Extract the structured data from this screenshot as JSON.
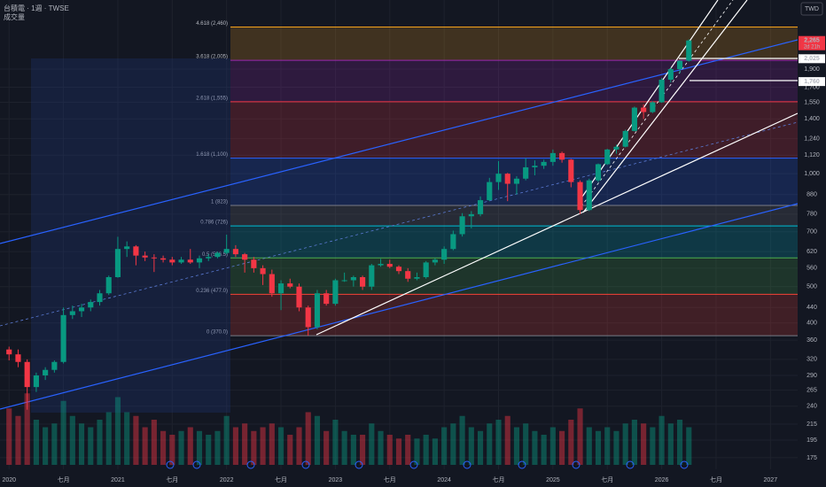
{
  "chart_data": {
    "type": "candlestick",
    "title": "台積電 · 1週 · TWSE",
    "volume_title": "成交量",
    "currency": "TWD",
    "log_scale": true,
    "grid": true,
    "up_color": "#089981",
    "down_color": "#f23645",
    "x": [
      "2020-01",
      "2020-02",
      "2020-03",
      "2020-04",
      "2020-05",
      "2020-06",
      "2020-07",
      "2020-08",
      "2020-09",
      "2020-10",
      "2020-11",
      "2020-12",
      "2021-01",
      "2021-02",
      "2021-03",
      "2021-04",
      "2021-05",
      "2021-06",
      "2021-07",
      "2021-08",
      "2021-09",
      "2021-10",
      "2021-11",
      "2021-12",
      "2022-01",
      "2022-02",
      "2022-03",
      "2022-04",
      "2022-05",
      "2022-06",
      "2022-07",
      "2022-08",
      "2022-09",
      "2022-10",
      "2022-11",
      "2022-12",
      "2023-01",
      "2023-02",
      "2023-03",
      "2023-04",
      "2023-05",
      "2023-06",
      "2023-07",
      "2023-08",
      "2023-09",
      "2023-10",
      "2023-11",
      "2023-12",
      "2024-01",
      "2024-02",
      "2024-03",
      "2024-04",
      "2024-05",
      "2024-06",
      "2024-07",
      "2024-08",
      "2024-09",
      "2024-10",
      "2024-11",
      "2024-12",
      "2025-01",
      "2025-02",
      "2025-03",
      "2025-04",
      "2025-05",
      "2025-06",
      "2025-07",
      "2025-08",
      "2025-09",
      "2025-10",
      "2025-11",
      "2025-12",
      "2026-01",
      "2026-02",
      "2026-03",
      "2026-04"
    ],
    "ohlc": [
      [
        340,
        346,
        318,
        330
      ],
      [
        330,
        340,
        305,
        315
      ],
      [
        315,
        320,
        235,
        270
      ],
      [
        270,
        295,
        262,
        290
      ],
      [
        290,
        305,
        282,
        300
      ],
      [
        300,
        318,
        295,
        315
      ],
      [
        315,
        440,
        312,
        420
      ],
      [
        420,
        445,
        410,
        430
      ],
      [
        430,
        450,
        415,
        440
      ],
      [
        440,
        462,
        430,
        455
      ],
      [
        455,
        490,
        445,
        480
      ],
      [
        480,
        535,
        475,
        530
      ],
      [
        530,
        679,
        528,
        630
      ],
      [
        630,
        660,
        600,
        640
      ],
      [
        640,
        645,
        570,
        605
      ],
      [
        605,
        620,
        585,
        598
      ],
      [
        598,
        610,
        547,
        595
      ],
      [
        595,
        605,
        580,
        590
      ],
      [
        590,
        600,
        570,
        580
      ],
      [
        580,
        600,
        575,
        590
      ],
      [
        590,
        630,
        575,
        580
      ],
      [
        580,
        605,
        560,
        595
      ],
      [
        595,
        610,
        585,
        600
      ],
      [
        600,
        620,
        595,
        615
      ],
      [
        615,
        688,
        610,
        630
      ],
      [
        630,
        645,
        600,
        610
      ],
      [
        610,
        615,
        545,
        590
      ],
      [
        590,
        600,
        545,
        560
      ],
      [
        560,
        570,
        505,
        540
      ],
      [
        540,
        555,
        470,
        480
      ],
      [
        480,
        520,
        433,
        510
      ],
      [
        510,
        525,
        495,
        500
      ],
      [
        500,
        510,
        430,
        440
      ],
      [
        440,
        445,
        370,
        390
      ],
      [
        390,
        490,
        385,
        480
      ],
      [
        480,
        490,
        445,
        450
      ],
      [
        450,
        525,
        445,
        520
      ],
      [
        520,
        545,
        515,
        520
      ],
      [
        520,
        535,
        500,
        530
      ],
      [
        530,
        535,
        490,
        500
      ],
      [
        500,
        575,
        490,
        570
      ],
      [
        570,
        593,
        565,
        575
      ],
      [
        575,
        590,
        560,
        565
      ],
      [
        565,
        570,
        540,
        550
      ],
      [
        550,
        560,
        515,
        525
      ],
      [
        525,
        545,
        520,
        530
      ],
      [
        530,
        585,
        525,
        580
      ],
      [
        580,
        595,
        570,
        590
      ],
      [
        590,
        640,
        575,
        630
      ],
      [
        630,
        705,
        625,
        690
      ],
      [
        690,
        785,
        680,
        770
      ],
      [
        770,
        795,
        715,
        780
      ],
      [
        780,
        870,
        770,
        850
      ],
      [
        850,
        975,
        845,
        950
      ],
      [
        950,
        1080,
        905,
        1000
      ],
      [
        1000,
        1005,
        845,
        940
      ],
      [
        940,
        985,
        880,
        970
      ],
      [
        970,
        1100,
        960,
        1040
      ],
      [
        1040,
        1085,
        990,
        1050
      ],
      [
        1050,
        1090,
        1030,
        1075
      ],
      [
        1075,
        1160,
        1050,
        1135
      ],
      [
        1135,
        1145,
        1070,
        1090
      ],
      [
        1090,
        1095,
        920,
        950
      ],
      [
        950,
        960,
        780,
        800
      ],
      [
        800,
        970,
        795,
        960
      ],
      [
        960,
        1065,
        950,
        1060
      ],
      [
        1060,
        1165,
        1055,
        1160
      ],
      [
        1160,
        1195,
        1130,
        1180
      ],
      [
        1180,
        1310,
        1175,
        1300
      ],
      [
        1300,
        1510,
        1295,
        1500
      ],
      [
        1500,
        1530,
        1400,
        1460
      ],
      [
        1460,
        1560,
        1450,
        1550
      ],
      [
        1550,
        1800,
        1545,
        1780
      ],
      [
        1780,
        1920,
        1750,
        1900
      ],
      [
        1900,
        2010,
        1850,
        2000
      ],
      [
        2000,
        2280,
        1990,
        2265
      ]
    ],
    "volume": [
      1500,
      1300,
      1900,
      1200,
      1000,
      1100,
      1700,
      1300,
      1100,
      1000,
      1200,
      1400,
      1800,
      1400,
      1300,
      1000,
      1200,
      900,
      800,
      900,
      1000,
      900,
      800,
      900,
      1300,
      1000,
      1100,
      900,
      1000,
      1100,
      1000,
      800,
      1000,
      1400,
      1300,
      900,
      1200,
      900,
      800,
      800,
      1100,
      900,
      800,
      700,
      800,
      700,
      800,
      700,
      1000,
      1100,
      1300,
      1000,
      900,
      1100,
      1200,
      1300,
      1000,
      1100,
      900,
      800,
      1000,
      900,
      1200,
      1500,
      1000,
      900,
      1000,
      900,
      1100,
      1200,
      1100,
      1000,
      1300,
      1100,
      1200,
      1000
    ],
    "vlim": [
      0,
      2000
    ],
    "xlim": [
      "2019-12",
      "2027-04"
    ],
    "xticks": [
      {
        "value": "2020-01",
        "label": "2020"
      },
      {
        "value": "2020-07",
        "label": "七月"
      },
      {
        "value": "2021-01",
        "label": "2021"
      },
      {
        "value": "2021-07",
        "label": "七月"
      },
      {
        "value": "2022-01",
        "label": "2022"
      },
      {
        "value": "2022-07",
        "label": "七月"
      },
      {
        "value": "2023-01",
        "label": "2023"
      },
      {
        "value": "2023-07",
        "label": "七月"
      },
      {
        "value": "2024-01",
        "label": "2024"
      },
      {
        "value": "2024-07",
        "label": "七月"
      },
      {
        "value": "2025-01",
        "label": "2025"
      },
      {
        "value": "2025-07",
        "label": "七月"
      },
      {
        "value": "2026-01",
        "label": "2026"
      },
      {
        "value": "2026-07",
        "label": "七月"
      },
      {
        "value": "2027-01",
        "label": "2027"
      }
    ],
    "ylim": [
      163,
      2780
    ],
    "yticks": [
      {
        "value": 1900,
        "label": "1,900"
      },
      {
        "value": 1700,
        "label": "1,700"
      },
      {
        "value": 1550,
        "label": "1,550"
      },
      {
        "value": 1400,
        "label": "1,400"
      },
      {
        "value": 1240,
        "label": "1,240"
      },
      {
        "value": 1120,
        "label": "1,120"
      },
      {
        "value": 1000,
        "label": "1,000"
      },
      880,
      780,
      700,
      620,
      560,
      500,
      440,
      400,
      360,
      320,
      290,
      265,
      240,
      215,
      195,
      175
    ],
    "price_labels": [
      {
        "value": 2265,
        "label": "2,265",
        "color": "#f23645"
      },
      {
        "value": 2025,
        "label": "2,025",
        "color": "#ffffff"
      },
      {
        "value": 1760,
        "label": "1,760",
        "color": "#ffffff"
      }
    ],
    "countdown": "2d 21h",
    "fibonacci": [
      {
        "label": "4.618 (2,460)",
        "price": 2460,
        "color": "#f7a21b"
      },
      {
        "label": "3.618 (2,005)",
        "price": 2005,
        "color": "#9c27b0"
      },
      {
        "label": "2.618 (1,555)",
        "price": 1555,
        "color": "#f23645"
      },
      {
        "label": "1.618 (1,100)",
        "price": 1100,
        "color": "#2962ff"
      },
      {
        "label": "1 (823)",
        "price": 823,
        "color": "#787b86"
      },
      {
        "label": "0.786 (726)",
        "price": 726,
        "color": "#00bcd4"
      },
      {
        "label": "0.5 (596.5)",
        "price": 596.5,
        "color": "#4caf50"
      },
      {
        "label": "0.236 (477.0)",
        "price": 477,
        "color": "#f44336"
      },
      {
        "label": "0 (370.0)",
        "price": 370,
        "color": "#787b86"
      }
    ]
  }
}
